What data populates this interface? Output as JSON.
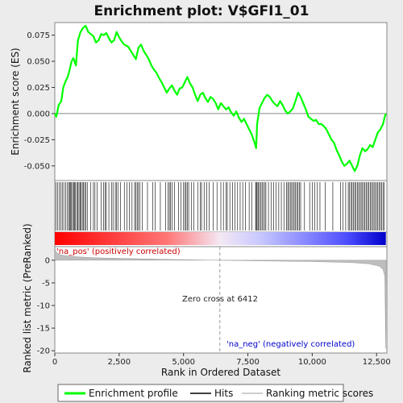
{
  "chart_data": {
    "type": "line",
    "title": "Enrichment plot: V$GFI1_01",
    "xlabel": "Rank in Ordered Dataset",
    "top_ylabel": "Enrichment score (ES)",
    "bottom_ylabel": "Ranked list metric (PreRanked)",
    "x_ticks": [
      0,
      2500,
      5000,
      7500,
      10000,
      12500
    ],
    "x_tick_labels": [
      "0",
      "2,500",
      "5,000",
      "7,500",
      "10,000",
      "12,500"
    ],
    "xlim": [
      0,
      12900
    ],
    "es_ylim": [
      -0.064,
      0.087
    ],
    "es_ticks": [
      0.075,
      0.05,
      0.025,
      0.0,
      -0.025,
      -0.05
    ],
    "es_tick_labels": [
      "0.075",
      "0.050",
      "0.025",
      "0.000",
      "-0.025",
      "-0.050"
    ],
    "metric_ylim": [
      -20.5,
      3
    ],
    "metric_ticks": [
      0,
      -5,
      -10,
      -15,
      -20
    ],
    "metric_tick_labels": [
      "0",
      "-5",
      "-10",
      "-15",
      "-20"
    ],
    "zero_cross_rank": 6412,
    "zero_cross_label": "Zero cross at 6412",
    "pos_label": "'na_pos' (positively correlated)",
    "neg_label": "'na_neg' (negatively correlated)",
    "legend": [
      "Enrichment profile",
      "Hits",
      "Ranking metric scores"
    ],
    "colors": {
      "profile": "#00ff00",
      "hits": "#000000",
      "metric": "#bebebe",
      "pos": "#ff0000",
      "neg": "#0000ff"
    },
    "enrichment_profile": [
      [
        0,
        0.0
      ],
      [
        60,
        -0.003
      ],
      [
        150,
        0.008
      ],
      [
        250,
        0.012
      ],
      [
        330,
        0.025
      ],
      [
        420,
        0.031
      ],
      [
        500,
        0.035
      ],
      [
        580,
        0.042
      ],
      [
        650,
        0.05
      ],
      [
        720,
        0.053
      ],
      [
        820,
        0.046
      ],
      [
        900,
        0.07
      ],
      [
        1000,
        0.078
      ],
      [
        1100,
        0.082
      ],
      [
        1200,
        0.084
      ],
      [
        1300,
        0.078
      ],
      [
        1400,
        0.076
      ],
      [
        1500,
        0.074
      ],
      [
        1600,
        0.068
      ],
      [
        1700,
        0.07
      ],
      [
        1800,
        0.076
      ],
      [
        1900,
        0.075
      ],
      [
        2000,
        0.077
      ],
      [
        2100,
        0.072
      ],
      [
        2200,
        0.068
      ],
      [
        2300,
        0.07
      ],
      [
        2400,
        0.078
      ],
      [
        2500,
        0.073
      ],
      [
        2600,
        0.069
      ],
      [
        2700,
        0.066
      ],
      [
        2850,
        0.064
      ],
      [
        2950,
        0.06
      ],
      [
        3050,
        0.056
      ],
      [
        3150,
        0.052
      ],
      [
        3250,
        0.063
      ],
      [
        3350,
        0.066
      ],
      [
        3450,
        0.06
      ],
      [
        3550,
        0.056
      ],
      [
        3650,
        0.052
      ],
      [
        3750,
        0.046
      ],
      [
        3850,
        0.042
      ],
      [
        3950,
        0.039
      ],
      [
        4050,
        0.034
      ],
      [
        4150,
        0.03
      ],
      [
        4250,
        0.025
      ],
      [
        4350,
        0.02
      ],
      [
        4450,
        0.024
      ],
      [
        4550,
        0.027
      ],
      [
        4650,
        0.022
      ],
      [
        4750,
        0.018
      ],
      [
        4850,
        0.024
      ],
      [
        4950,
        0.025
      ],
      [
        5050,
        0.03
      ],
      [
        5150,
        0.035
      ],
      [
        5250,
        0.029
      ],
      [
        5350,
        0.025
      ],
      [
        5450,
        0.018
      ],
      [
        5550,
        0.012
      ],
      [
        5650,
        0.018
      ],
      [
        5750,
        0.02
      ],
      [
        5850,
        0.015
      ],
      [
        5950,
        0.011
      ],
      [
        6050,
        0.016
      ],
      [
        6150,
        0.014
      ],
      [
        6250,
        0.01
      ],
      [
        6350,
        0.004
      ],
      [
        6450,
        0.01
      ],
      [
        6550,
        0.007
      ],
      [
        6650,
        0.004
      ],
      [
        6750,
        0.006
      ],
      [
        6850,
        0.001
      ],
      [
        6950,
        -0.002
      ],
      [
        7050,
        0.002
      ],
      [
        7150,
        -0.004
      ],
      [
        7250,
        -0.008
      ],
      [
        7350,
        -0.005
      ],
      [
        7450,
        -0.01
      ],
      [
        7550,
        -0.015
      ],
      [
        7650,
        -0.02
      ],
      [
        7750,
        -0.027
      ],
      [
        7820,
        -0.033
      ],
      [
        7860,
        -0.01
      ],
      [
        7950,
        0.005
      ],
      [
        8050,
        0.01
      ],
      [
        8150,
        0.015
      ],
      [
        8250,
        0.018
      ],
      [
        8350,
        0.016
      ],
      [
        8450,
        0.012
      ],
      [
        8550,
        0.009
      ],
      [
        8650,
        0.007
      ],
      [
        8750,
        0.012
      ],
      [
        8850,
        0.008
      ],
      [
        8950,
        0.003
      ],
      [
        9050,
        0.0
      ],
      [
        9150,
        0.002
      ],
      [
        9250,
        0.005
      ],
      [
        9350,
        0.012
      ],
      [
        9450,
        0.02
      ],
      [
        9550,
        0.016
      ],
      [
        9650,
        0.01
      ],
      [
        9750,
        0.004
      ],
      [
        9850,
        -0.003
      ],
      [
        9950,
        -0.005
      ],
      [
        10050,
        -0.007
      ],
      [
        10150,
        -0.006
      ],
      [
        10250,
        -0.01
      ],
      [
        10350,
        -0.01
      ],
      [
        10450,
        -0.012
      ],
      [
        10550,
        -0.015
      ],
      [
        10650,
        -0.02
      ],
      [
        10750,
        -0.025
      ],
      [
        10850,
        -0.028
      ],
      [
        10950,
        -0.035
      ],
      [
        11050,
        -0.04
      ],
      [
        11150,
        -0.046
      ],
      [
        11250,
        -0.05
      ],
      [
        11350,
        -0.048
      ],
      [
        11450,
        -0.045
      ],
      [
        11550,
        -0.05
      ],
      [
        11650,
        -0.055
      ],
      [
        11750,
        -0.05
      ],
      [
        11850,
        -0.04
      ],
      [
        11950,
        -0.033
      ],
      [
        12050,
        -0.036
      ],
      [
        12150,
        -0.034
      ],
      [
        12250,
        -0.03
      ],
      [
        12350,
        -0.032
      ],
      [
        12450,
        -0.025
      ],
      [
        12550,
        -0.018
      ],
      [
        12650,
        -0.015
      ],
      [
        12750,
        -0.01
      ],
      [
        12820,
        -0.003
      ],
      [
        12860,
        0.0
      ]
    ],
    "hit_ranks": [
      40,
      110,
      180,
      230,
      290,
      350,
      420,
      480,
      540,
      570,
      610,
      650,
      690,
      730,
      760,
      800,
      860,
      900,
      940,
      980,
      1020,
      1070,
      1110,
      1160,
      1210,
      1260,
      1400,
      1500,
      1560,
      1650,
      1800,
      1900,
      1950,
      2000,
      2100,
      2200,
      2260,
      2350,
      2400,
      2450,
      2550,
      2700,
      2800,
      2900,
      3000,
      3100,
      3150,
      3200,
      3250,
      3300,
      3400,
      3600,
      3800,
      3900,
      4100,
      4300,
      4400,
      4450,
      4500,
      4550,
      4650,
      4800,
      4900,
      5000,
      5050,
      5100,
      5150,
      5200,
      5300,
      5400,
      5550,
      5650,
      5700,
      5800,
      5900,
      6000,
      6150,
      6300,
      6450,
      6550,
      6650,
      6700,
      6800,
      6900,
      7000,
      7100,
      7200,
      7300,
      7400,
      7550,
      7650,
      7800,
      7830,
      7860,
      7900,
      7950,
      8000,
      8050,
      8100,
      8150,
      8200,
      8300,
      8400,
      8500,
      8600,
      8700,
      8800,
      8900,
      9000,
      9050,
      9100,
      9150,
      9200,
      9250,
      9300,
      9350,
      9400,
      9450,
      9500,
      9550,
      9700,
      9900,
      10000,
      10100,
      10200,
      10300,
      10500,
      10800,
      11100,
      11200,
      11300,
      11400,
      11450,
      11500,
      11550,
      11600,
      11650,
      11700,
      11750,
      11800,
      11850,
      11900,
      11950,
      12000,
      12050,
      12100,
      12150,
      12200,
      12250,
      12300,
      12350,
      12400,
      12450,
      12500,
      12550,
      12600,
      12650,
      12700,
      12750,
      12800
    ],
    "metric_curve": [
      [
        0,
        2.8
      ],
      [
        50,
        1.8
      ],
      [
        200,
        1.2
      ],
      [
        600,
        0.85
      ],
      [
        1500,
        0.55
      ],
      [
        3000,
        0.35
      ],
      [
        5000,
        0.12
      ],
      [
        6412,
        0.0
      ],
      [
        8000,
        -0.15
      ],
      [
        10000,
        -0.3
      ],
      [
        11500,
        -0.5
      ],
      [
        12200,
        -0.8
      ],
      [
        12600,
        -1.3
      ],
      [
        12750,
        -2.0
      ],
      [
        12820,
        -3.5
      ],
      [
        12860,
        -19.5
      ],
      [
        12870,
        0.0
      ]
    ]
  }
}
